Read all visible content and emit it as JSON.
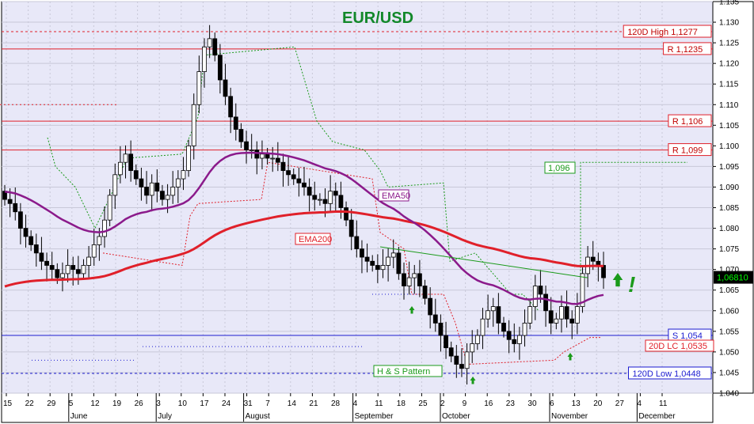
{
  "chart_data": {
    "type": "candlestick",
    "title": "EUR/USD",
    "pair": "EUR/USD",
    "last_price": "1,06810",
    "ylim": [
      1.04,
      1.135
    ],
    "y_ticks": [
      "1.135",
      "1.130",
      "1.125",
      "1.120",
      "1.115",
      "1.110",
      "1.105",
      "1.100",
      "1.095",
      "1.090",
      "1.085",
      "1.080",
      "1.075",
      "1.070",
      "1.065",
      "1.060",
      "1.055",
      "1.050",
      "1.045",
      "1.040"
    ],
    "x_day_ticks": [
      "15",
      "22",
      "29",
      "5",
      "12",
      "19",
      "26",
      "3",
      "10",
      "17",
      "24",
      "31",
      "7",
      "14",
      "21",
      "28",
      "4",
      "11",
      "18",
      "25",
      "2",
      "9",
      "16",
      "23",
      "30",
      "6",
      "13",
      "20",
      "27",
      "4",
      "11"
    ],
    "x_month_ticks": [
      "June",
      "July",
      "August",
      "September",
      "October",
      "November",
      "December"
    ],
    "levels": [
      {
        "label": "120D High 1,1277",
        "value": 1.1277,
        "color": "#e0202a",
        "style": "dotted"
      },
      {
        "label": "R 1,1235",
        "value": 1.1235,
        "color": "#e0202a",
        "style": "solid"
      },
      {
        "label": "R 1,106",
        "value": 1.106,
        "color": "#e0202a",
        "style": "solid"
      },
      {
        "label": "R 1,099",
        "value": 1.099,
        "color": "#e0202a",
        "style": "solid"
      },
      {
        "label": "S 1,054",
        "value": 1.054,
        "color": "#1b1bd0",
        "style": "solid"
      },
      {
        "label": "120D Low 1,0448",
        "value": 1.0448,
        "color": "#1b1bd0",
        "style": "dotted"
      }
    ],
    "annotations": [
      {
        "label": "20D LC 1,0535",
        "color": "#e0202a"
      },
      {
        "label": "1,096",
        "color": "#1a9a1a"
      },
      {
        "label": "EMA50",
        "color": "#8b1a8b"
      },
      {
        "label": "EMA200",
        "color": "#e0202a"
      },
      {
        "label": "H & S Pattern",
        "color": "#1a9a1a"
      }
    ],
    "signal_mark": "!",
    "close": [
      1.087,
      1.086,
      1.084,
      1.08,
      1.078,
      1.076,
      1.074,
      1.072,
      1.071,
      1.07,
      1.068,
      1.069,
      1.071,
      1.07,
      1.069,
      1.071,
      1.073,
      1.076,
      1.078,
      1.082,
      1.088,
      1.093,
      1.096,
      1.098,
      1.094,
      1.092,
      1.09,
      1.088,
      1.091,
      1.089,
      1.087,
      1.088,
      1.09,
      1.092,
      1.094,
      1.1,
      1.11,
      1.118,
      1.124,
      1.126,
      1.122,
      1.116,
      1.112,
      1.107,
      1.104,
      1.101,
      1.099,
      1.099,
      1.097,
      1.098,
      1.097,
      1.097,
      1.096,
      1.094,
      1.093,
      1.092,
      1.091,
      1.09,
      1.088,
      1.087,
      1.087,
      1.086,
      1.089,
      1.088,
      1.085,
      1.082,
      1.078,
      1.075,
      1.073,
      1.072,
      1.071,
      1.07,
      1.071,
      1.073,
      1.074,
      1.069,
      1.066,
      1.068,
      1.069,
      1.066,
      1.063,
      1.059,
      1.057,
      1.054,
      1.051,
      1.049,
      1.047,
      1.046,
      1.05,
      1.052,
      1.054,
      1.058,
      1.06,
      1.061,
      1.057,
      1.055,
      1.053,
      1.052,
      1.054,
      1.057,
      1.061,
      1.066,
      1.064,
      1.06,
      1.057,
      1.058,
      1.061,
      1.058,
      1.057,
      1.061,
      1.069,
      1.073,
      1.072,
      1.071,
      1.068
    ],
    "ema50_label": "EMA50",
    "ema200_label": "EMA200"
  }
}
